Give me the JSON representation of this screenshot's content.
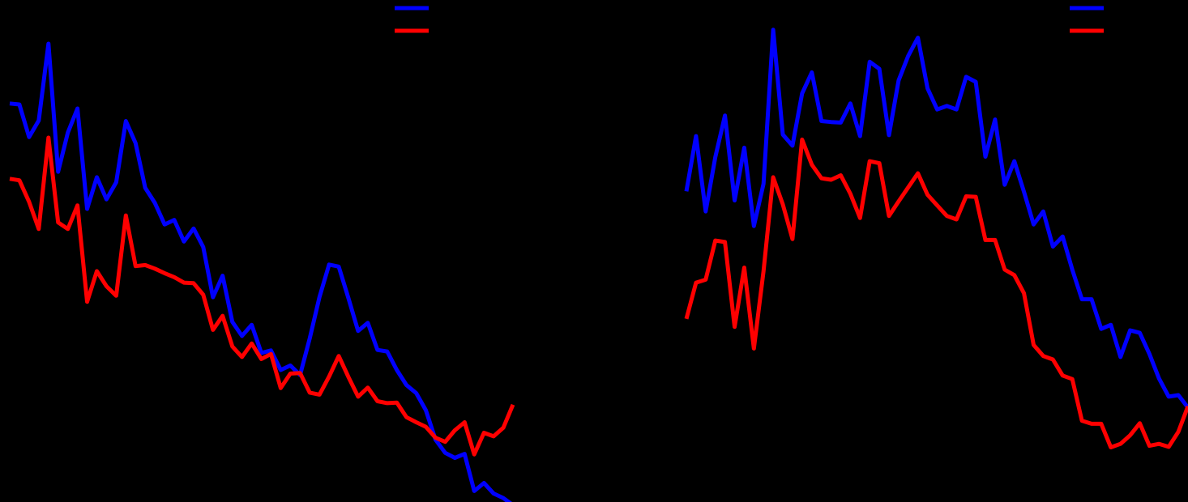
{
  "chart_data": [
    {
      "type": "line",
      "title": "",
      "xlabel": "",
      "ylabel": "",
      "legend_position": "top-right",
      "grid": false,
      "xlim": [
        0,
        52
      ],
      "ylim": [
        0,
        100
      ],
      "x": [
        0,
        1,
        2,
        3,
        4,
        5,
        6,
        7,
        8,
        9,
        10,
        11,
        12,
        13,
        14,
        15,
        16,
        17,
        18,
        19,
        20,
        21,
        22,
        23,
        24,
        25,
        26,
        27,
        28,
        29,
        30,
        31,
        32,
        33,
        34,
        35,
        36,
        37,
        38,
        39,
        40,
        41,
        42,
        43,
        44,
        45,
        46,
        47,
        48,
        49,
        50,
        51,
        52
      ],
      "series": [
        {
          "color": "#0000ff",
          "values": [
            81,
            80.8,
            74.3,
            77.6,
            92.9,
            67.4,
            75.2,
            80,
            60,
            66.3,
            61.9,
            65.3,
            77.5,
            73.1,
            64.2,
            61.2,
            56.9,
            57.8,
            53.5,
            56.1,
            52.4,
            42.4,
            46.7,
            37.5,
            34.7,
            36.9,
            31.3,
            31.8,
            27.9,
            28.8,
            26.9,
            34.2,
            42.4,
            48.9,
            48.5,
            42.2,
            35.7,
            37.3,
            31.9,
            31.6,
            27.9,
            24.9,
            23.3,
            19.9,
            14,
            11.4,
            10.4,
            11.2,
            3.8,
            5.4,
            3.3,
            2.4,
            1
          ]
        },
        {
          "color": "#ff0000",
          "values": [
            66,
            65.7,
            61.4,
            56,
            74.2,
            57.3,
            56,
            60.7,
            41.5,
            47.6,
            44.6,
            42.7,
            58.7,
            48.6,
            48.8,
            48.1,
            47.2,
            46.4,
            45.3,
            45.2,
            42.9,
            35.9,
            38.7,
            32.6,
            30.5,
            33.2,
            30.1,
            31.1,
            24.3,
            27.2,
            27.3,
            23.4,
            23,
            26.6,
            30.7,
            26.5,
            22.6,
            24.4,
            21.7,
            21.3,
            21.4,
            18.5,
            17.5,
            16.6,
            14.4,
            13.6,
            15.9,
            17.5,
            11.1,
            15.4,
            14.7,
            16.4,
            21
          ]
        }
      ]
    },
    {
      "type": "line",
      "title": "",
      "xlabel": "",
      "ylabel": "",
      "legend_position": "top-right",
      "grid": false,
      "xlim": [
        0,
        52
      ],
      "ylim": [
        0,
        100
      ],
      "x": [
        0,
        1,
        2,
        3,
        4,
        5,
        6,
        7,
        8,
        9,
        10,
        11,
        12,
        13,
        14,
        15,
        16,
        17,
        18,
        19,
        20,
        21,
        22,
        23,
        24,
        25,
        26,
        27,
        28,
        29,
        30,
        31,
        32,
        33,
        34,
        35,
        36,
        37,
        38,
        39,
        40,
        41,
        42,
        43,
        44,
        45,
        46,
        47,
        48,
        49,
        50,
        51,
        52
      ],
      "series": [
        {
          "color": "#0000ff",
          "values": [
            63.5,
            74.5,
            59.5,
            70.3,
            78.6,
            61.7,
            72.2,
            56.6,
            65,
            95.7,
            74.8,
            72.6,
            83,
            87.2,
            77.5,
            77.3,
            77.2,
            81,
            74.5,
            89.3,
            87.9,
            74.7,
            85.6,
            90.5,
            94.1,
            84,
            79.8,
            80.5,
            79.8,
            86.3,
            85.3,
            70.4,
            77.8,
            64.8,
            69.5,
            63.4,
            56.9,
            59.5,
            52.5,
            54.5,
            47.9,
            42,
            42,
            36.1,
            36.9,
            30.5,
            35.8,
            35.3,
            31.1,
            26.2,
            22.6,
            22.9,
            20.4
          ]
        },
        {
          "color": "#ff0000",
          "values": [
            38.1,
            45.3,
            45.9,
            53.7,
            53.4,
            36.5,
            48.3,
            32.2,
            47.6,
            66.3,
            60.9,
            54,
            73.8,
            68.8,
            66.1,
            65.8,
            66.7,
            63,
            58.2,
            69.5,
            69.1,
            58.6,
            61.5,
            64.3,
            67.1,
            62.8,
            60.7,
            58.6,
            57.9,
            62.5,
            62.4,
            53.8,
            53.8,
            47.9,
            46.8,
            43.2,
            32.9,
            30.7,
            30,
            26.8,
            26.1,
            17.8,
            17.2,
            17.2,
            12.5,
            13.2,
            14.9,
            17.3,
            12.8,
            13.2,
            12.6,
            15.6,
            20.7
          ]
        }
      ]
    }
  ]
}
